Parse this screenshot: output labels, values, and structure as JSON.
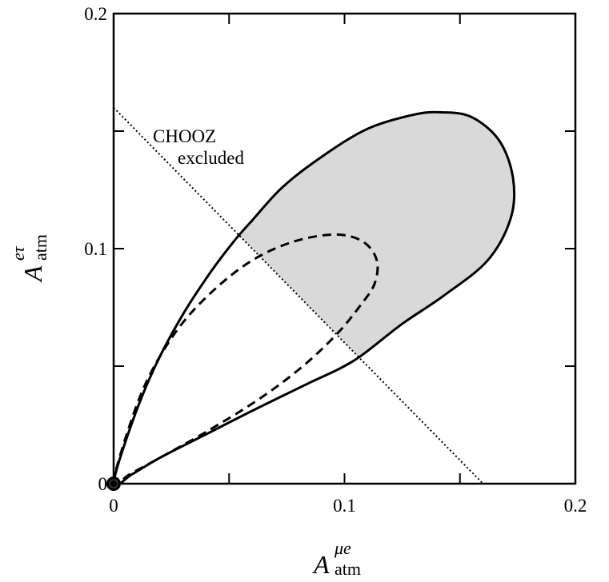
{
  "chart_data": {
    "type": "line",
    "xlabel": {
      "base": "A",
      "sup": "μe",
      "sub": "atm"
    },
    "ylabel": {
      "base": "A",
      "sup": "eτ",
      "sub": "atm"
    },
    "xlim": [
      0,
      0.2
    ],
    "ylim": [
      0,
      0.2
    ],
    "x_ticks": [
      0,
      0.05,
      0.1,
      0.15,
      0.2
    ],
    "y_ticks": [
      0,
      0.05,
      0.1,
      0.15,
      0.2
    ],
    "x_tick_labels": [
      {
        "value": 0,
        "label": "0"
      },
      {
        "value": 0.1,
        "label": "0.1"
      },
      {
        "value": 0.2,
        "label": "0.2"
      }
    ],
    "y_tick_labels": [
      {
        "value": 0,
        "label": "0"
      },
      {
        "value": 0.1,
        "label": "0.1"
      },
      {
        "value": 0.2,
        "label": "0.2"
      }
    ],
    "grid": false,
    "colors": {
      "shaded_region": "#d9d9d9",
      "lines": "#000000"
    },
    "annotation": {
      "line1": "CHOOZ",
      "line2": "excluded"
    },
    "series": [
      {
        "style": "solid",
        "points": [
          [
            0,
            0
          ],
          [
            0.008,
            0.026
          ],
          [
            0.018,
            0.05
          ],
          [
            0.03,
            0.072
          ],
          [
            0.042,
            0.09
          ],
          [
            0.052,
            0.103
          ],
          [
            0.06,
            0.112
          ],
          [
            0.073,
            0.126
          ],
          [
            0.09,
            0.139
          ],
          [
            0.11,
            0.151
          ],
          [
            0.13,
            0.157
          ],
          [
            0.142,
            0.158
          ],
          [
            0.155,
            0.156
          ],
          [
            0.167,
            0.146
          ],
          [
            0.173,
            0.13
          ],
          [
            0.172,
            0.113
          ],
          [
            0.162,
            0.095
          ],
          [
            0.143,
            0.08
          ],
          [
            0.125,
            0.068
          ],
          [
            0.108,
            0.055
          ],
          [
            0.098,
            0.049
          ],
          [
            0.085,
            0.043
          ],
          [
            0.06,
            0.031
          ],
          [
            0.04,
            0.021
          ],
          [
            0.02,
            0.011
          ],
          [
            0.008,
            0.004
          ],
          [
            0,
            0
          ]
        ]
      },
      {
        "style": "dashed",
        "points": [
          [
            0,
            0
          ],
          [
            0.006,
            0.022
          ],
          [
            0.015,
            0.045
          ],
          [
            0.028,
            0.066
          ],
          [
            0.043,
            0.082
          ],
          [
            0.06,
            0.095
          ],
          [
            0.078,
            0.103
          ],
          [
            0.096,
            0.106
          ],
          [
            0.108,
            0.103
          ],
          [
            0.114,
            0.095
          ],
          [
            0.113,
            0.085
          ],
          [
            0.107,
            0.076
          ],
          [
            0.097,
            0.064
          ],
          [
            0.082,
            0.05
          ],
          [
            0.063,
            0.036
          ],
          [
            0.04,
            0.022
          ],
          [
            0.02,
            0.011
          ],
          [
            0.007,
            0.004
          ],
          [
            0,
            0
          ]
        ]
      },
      {
        "style": "dotted",
        "points": [
          [
            0,
            0.16
          ],
          [
            0.16,
            0
          ]
        ]
      }
    ],
    "shaded_region": "inside solid contour, outside CHOOZ excluded region",
    "marker": {
      "x": 0,
      "y": 0,
      "shape": "filled-circle"
    }
  }
}
